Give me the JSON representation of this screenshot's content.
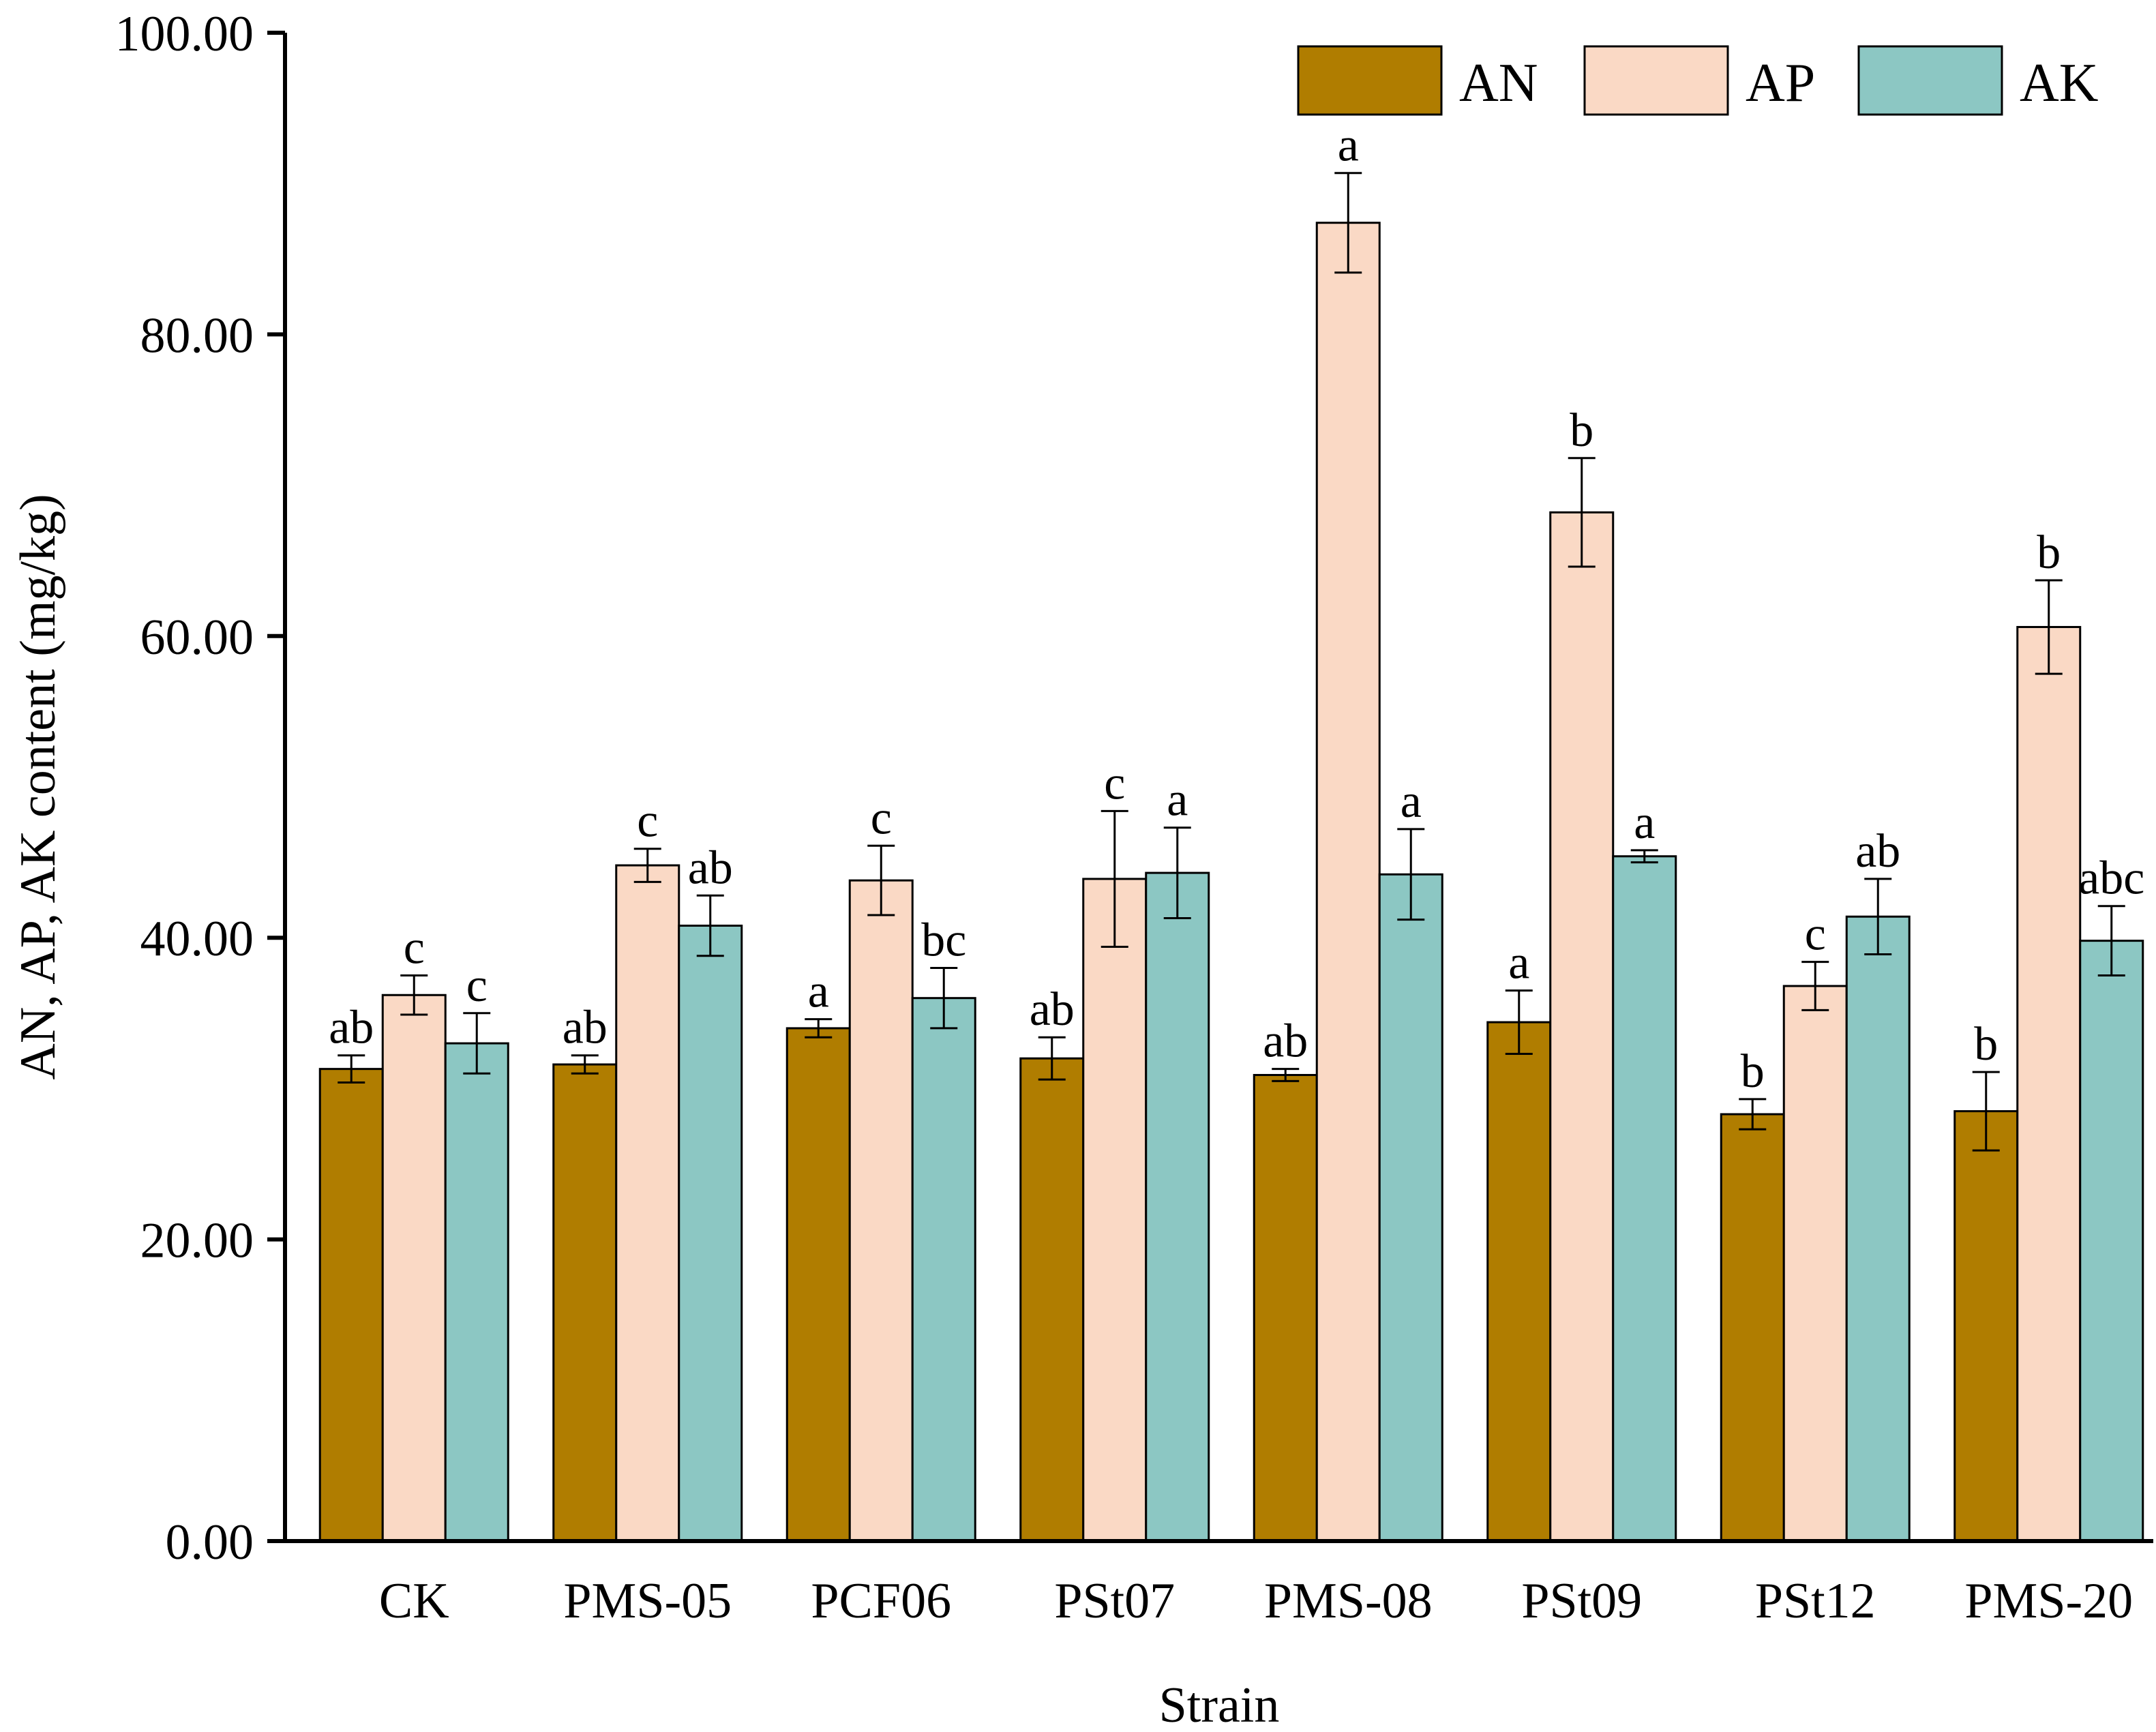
{
  "chart_data": {
    "type": "bar",
    "title": "",
    "xlabel": "Strain",
    "ylabel": "AN, AP, AK content (mg/kg)",
    "ylim": [
      0,
      100
    ],
    "yticks": [
      0,
      20,
      40,
      60,
      80,
      100
    ],
    "ytick_labels": [
      "0.00",
      "20.00",
      "40.00",
      "60.00",
      "80.00",
      "100.00"
    ],
    "categories": [
      "CK",
      "PMS-05",
      "PCF06",
      "PSt07",
      "PMS-08",
      "PSt09",
      "PSt12",
      "PMS-20"
    ],
    "legend_position": "top-right",
    "grid": false,
    "series": [
      {
        "name": "AN",
        "color": "#B07D00",
        "values": [
          31.3,
          31.6,
          34.0,
          32.0,
          30.9,
          34.4,
          28.3,
          28.5
        ],
        "errors": [
          0.9,
          0.6,
          0.6,
          1.4,
          0.4,
          2.1,
          1.0,
          2.6
        ],
        "labels": [
          "ab",
          "ab",
          "a",
          "ab",
          "ab",
          "a",
          "b",
          "b"
        ]
      },
      {
        "name": "AP",
        "color": "#FAD9C5",
        "values": [
          36.2,
          44.8,
          43.8,
          43.9,
          87.4,
          68.2,
          36.8,
          60.6
        ],
        "errors": [
          1.3,
          1.1,
          2.3,
          4.5,
          3.3,
          3.6,
          1.6,
          3.1
        ],
        "labels": [
          "c",
          "c",
          "c",
          "c",
          "a",
          "b",
          "c",
          "b"
        ]
      },
      {
        "name": "AK",
        "color": "#8CC7C3",
        "values": [
          33.0,
          40.8,
          36.0,
          44.3,
          44.2,
          45.4,
          41.4,
          39.8
        ],
        "errors": [
          2.0,
          2.0,
          2.0,
          3.0,
          3.0,
          0.4,
          2.5,
          2.3
        ],
        "labels": [
          "c",
          "ab",
          "bc",
          "a",
          "a",
          "a",
          "ab",
          "abc"
        ]
      }
    ]
  }
}
